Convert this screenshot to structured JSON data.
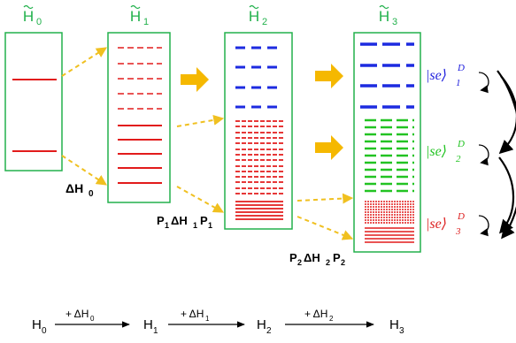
{
  "stages": [
    {
      "label_main": "H",
      "label_sub": "0",
      "color": "#22b14c"
    },
    {
      "label_main": "H",
      "label_sub": "1",
      "color": "#22b14c"
    },
    {
      "label_main": "H",
      "label_sub": "2",
      "color": "#22b14c"
    },
    {
      "label_main": "H",
      "label_sub": "3",
      "color": "#22b14c"
    }
  ],
  "perturbations": [
    {
      "delta": "ΔH",
      "sub": "0"
    },
    {
      "pre": "P",
      "pre_sub": "1",
      "delta": "ΔH",
      "sub": "1",
      "post": "P",
      "post_sub": "1"
    },
    {
      "pre": "P",
      "pre_sub": "2",
      "delta": "ΔH",
      "sub": "2",
      "post": "P",
      "post_sub": "2"
    }
  ],
  "subspaces": [
    {
      "ket": "|se⟩",
      "sup": "D",
      "sub": "1",
      "color": "#1f1fdd"
    },
    {
      "ket": "|se⟩",
      "sup": "D",
      "sub": "2",
      "color": "#22c322"
    },
    {
      "ket": "|se⟩",
      "sup": "D",
      "sub": "3",
      "color": "#dd2222"
    }
  ],
  "sequence": {
    "nodes": [
      {
        "main": "H",
        "sub": "0"
      },
      {
        "main": "H",
        "sub": "1"
      },
      {
        "main": "H",
        "sub": "2"
      },
      {
        "main": "H",
        "sub": "3"
      }
    ],
    "arrows": [
      {
        "prefix": "+ ΔH",
        "sub": "0"
      },
      {
        "prefix": "+ ΔH",
        "sub": "1"
      },
      {
        "prefix": "+ ΔH",
        "sub": "2"
      }
    ]
  },
  "colors": {
    "box": "#22b14c",
    "red": "#e21b1b",
    "blue": "#1d2be0",
    "green": "#22c322",
    "orange": "#f5b800",
    "dashed_arrow": "#f0c020"
  }
}
